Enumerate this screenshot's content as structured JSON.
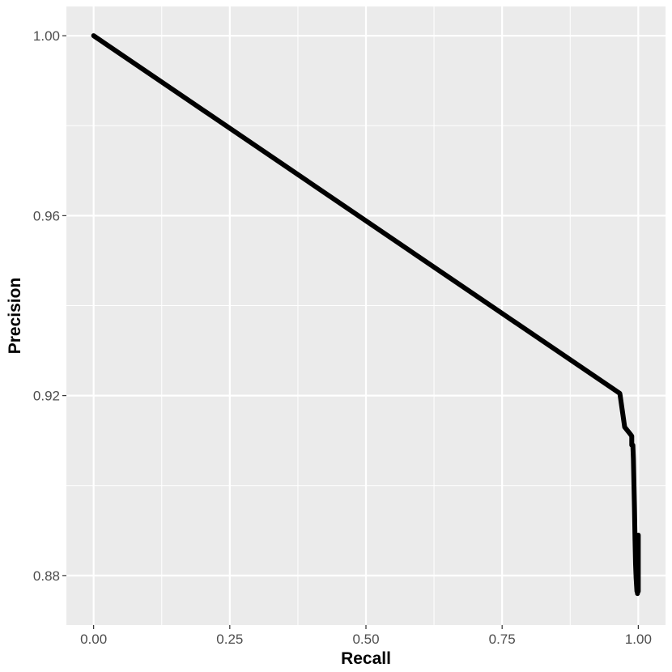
{
  "chart_data": {
    "type": "line",
    "title": "",
    "xlabel": "Recall",
    "ylabel": "Precision",
    "xlim": [
      -0.05,
      1.05
    ],
    "ylim": [
      0.869,
      1.0065
    ],
    "x_ticks": [
      0.0,
      0.25,
      0.5,
      0.75,
      1.0
    ],
    "x_tick_labels": [
      "0.00",
      "0.25",
      "0.50",
      "0.75",
      "1.00"
    ],
    "y_ticks": [
      0.88,
      0.92,
      0.96,
      1.0
    ],
    "y_tick_labels": [
      "0.88",
      "0.92",
      "0.96",
      "1.00"
    ],
    "grid": true,
    "legend": "none",
    "colors": {
      "panel": "#ebebeb",
      "grid": "#ffffff",
      "line": "#000000"
    },
    "series": [
      {
        "values_xy": [
          [
            0.0,
            1.0
          ],
          [
            0.966,
            0.9205
          ],
          [
            0.9665,
            0.9202
          ],
          [
            0.975,
            0.913
          ],
          [
            0.985,
            0.9115
          ],
          [
            0.988,
            0.911
          ],
          [
            0.988,
            0.909
          ],
          [
            0.99,
            0.909
          ],
          [
            0.991,
            0.906
          ],
          [
            0.992,
            0.9005
          ],
          [
            0.993,
            0.895
          ],
          [
            0.994,
            0.888
          ],
          [
            0.995,
            0.8825
          ],
          [
            0.996,
            0.8795
          ],
          [
            0.997,
            0.8775
          ],
          [
            0.9975,
            0.8765
          ],
          [
            1.0,
            0.8765
          ],
          [
            1.0,
            0.889
          ],
          [
            0.999,
            0.8765
          ],
          [
            0.9985,
            0.876
          ]
        ]
      }
    ]
  }
}
